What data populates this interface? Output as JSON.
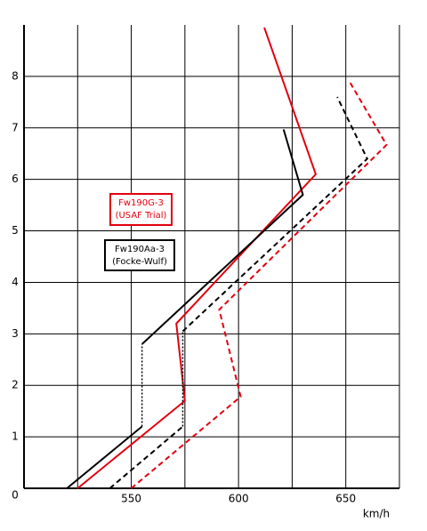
{
  "chart_data": {
    "type": "line",
    "x_label": "km/h",
    "xlim": [
      500,
      675
    ],
    "ylim": [
      0,
      9
    ],
    "xticks": [
      550,
      600,
      650
    ],
    "xminor": [
      525,
      575,
      625,
      675
    ],
    "yticks": [
      0,
      1,
      2,
      3,
      4,
      5,
      6,
      7,
      8
    ],
    "grid": true,
    "series": [
      {
        "color": "#e3000f",
        "style": "solid",
        "x": [
          525,
          575,
          571,
          636,
          612
        ],
        "values": [
          0,
          1.7,
          3.2,
          6.1,
          8.95
        ]
      },
      {
        "color": "#e3000f",
        "style": "dashed",
        "x": [
          550,
          601,
          591,
          669,
          652
        ],
        "values": [
          0,
          1.78,
          3.47,
          6.67,
          7.88
        ]
      },
      {
        "color": "#000000",
        "style": "solid",
        "x": [
          520,
          555,
          null,
          555,
          630,
          621
        ],
        "values": [
          0,
          1.2,
          null,
          2.8,
          5.7,
          6.97
        ]
      },
      {
        "color": "#000000",
        "style": "dotted",
        "x": [
          555,
          555
        ],
        "values": [
          1.2,
          2.8
        ]
      },
      {
        "color": "#000000",
        "style": "dashed",
        "x": [
          540,
          574,
          null,
          574,
          660,
          646
        ],
        "values": [
          0,
          1.2,
          null,
          3.05,
          6.4,
          7.6
        ]
      },
      {
        "color": "#000000",
        "style": "dotted",
        "x": [
          574,
          574
        ],
        "values": [
          1.2,
          3.05
        ]
      }
    ],
    "legend": [
      {
        "lines": [
          "Fw190G-3",
          "(USAF Trial)"
        ],
        "color": "#e3000f"
      },
      {
        "lines": [
          "Fw190Aa-3",
          "(Focke-Wulf)"
        ],
        "color": "#000000"
      }
    ]
  }
}
